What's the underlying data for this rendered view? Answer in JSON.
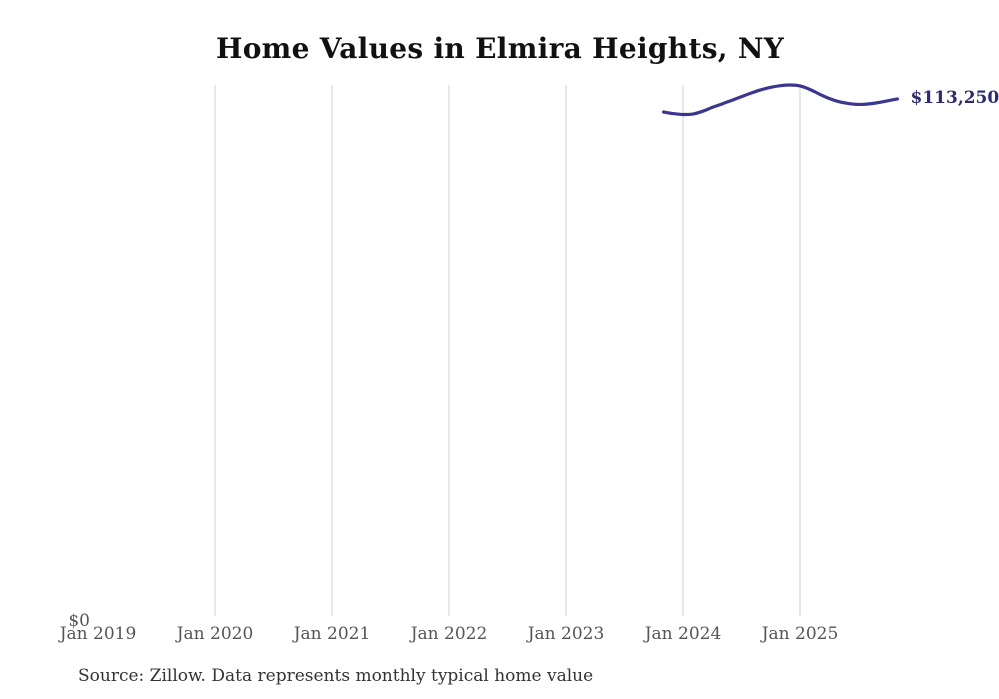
{
  "title": "Home Values in Elmira Heights, NY",
  "source_note": "Source: Zillow. Data represents monthly typical home value",
  "colors": {
    "background": "#ffffff",
    "title": "#111111",
    "line": "#3b3791",
    "end_label": "#2d2b6e",
    "gridline": "#d0d0d0",
    "axis_label": "#555555",
    "source": "#333333"
  },
  "chart_data": {
    "type": "line",
    "title": "Home Values in Elmira Heights, NY",
    "xlabel": "",
    "ylabel": "",
    "grid": "vertical-only",
    "legend": "none",
    "ylim": [
      0,
      116300
    ],
    "y_zero_label": "$0",
    "end_label": "$113,250",
    "series_name": "Monthly typical home value",
    "x": [
      "2023-11",
      "2023-12",
      "2024-01",
      "2024-02",
      "2024-03",
      "2024-04",
      "2024-05",
      "2024-06",
      "2024-07",
      "2024-08",
      "2024-09",
      "2024-10",
      "2024-11",
      "2024-12",
      "2025-01",
      "2025-02",
      "2025-03",
      "2025-04",
      "2025-05",
      "2025-06",
      "2025-07",
      "2025-08",
      "2025-09",
      "2025-10",
      "2025-11"
    ],
    "values": [
      110400,
      110050,
      109850,
      109950,
      110550,
      111400,
      112150,
      112950,
      113750,
      114550,
      115250,
      115800,
      116150,
      116300,
      116100,
      115350,
      114300,
      113350,
      112650,
      112250,
      112050,
      112150,
      112450,
      112850,
      113250
    ],
    "x_ticks": [
      {
        "label": "Jan 2019",
        "date": "2019-01",
        "gridline": false
      },
      {
        "label": "Jan 2020",
        "date": "2020-01",
        "gridline": true
      },
      {
        "label": "Jan 2021",
        "date": "2021-01",
        "gridline": true
      },
      {
        "label": "Jan 2022",
        "date": "2022-01",
        "gridline": true
      },
      {
        "label": "Jan 2023",
        "date": "2023-01",
        "gridline": true
      },
      {
        "label": "Jan 2024",
        "date": "2024-01",
        "gridline": true
      },
      {
        "label": "Jan 2025",
        "date": "2025-01",
        "gridline": true
      }
    ]
  }
}
